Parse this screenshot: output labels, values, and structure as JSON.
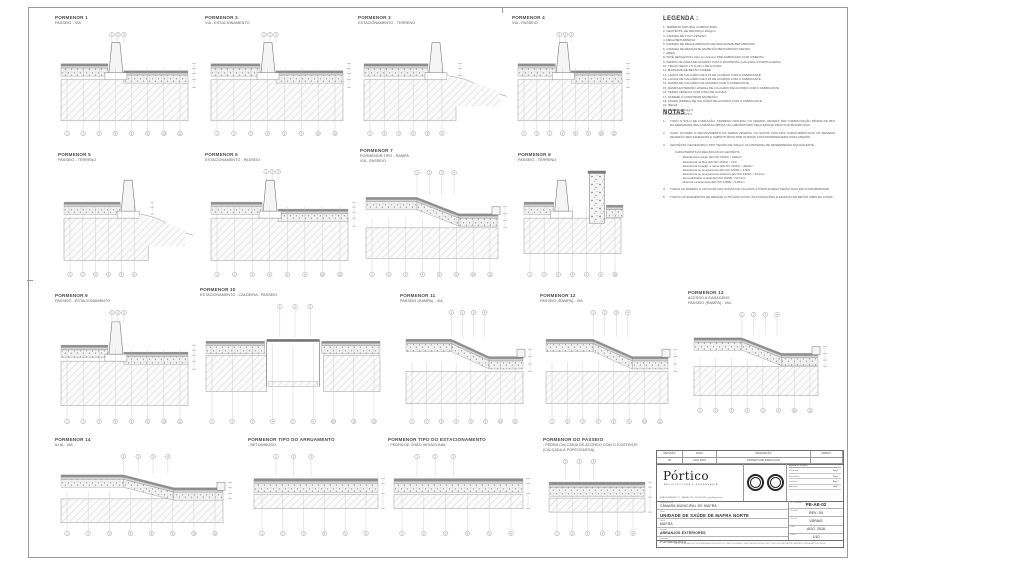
{
  "legend": {
    "title": "LEGENDA :",
    "items": [
      "TERRENO NATURAL COMPACTADO",
      "GEOTÊXTIL DE REFORÇO 200g/m²",
      "CAMADA DE TOUT-VENANT",
      "REGA BETUMINOSA",
      "CAMADA DE REGULARIZAÇÃO EM MACADAME BETUMINOSO",
      "CAMADA DE DESGASTE EM BETÃO BETUMINOSO DENSO",
      "AREIA",
      "PAVÊ HEXAGONAL (tipo em branco) PRÉ-FABRICADO COM CIMENTO",
      "PEDRA CALCÁRIA DE ACORDO COM O EXISTENTE (CALÇADA À PORTUGUESA)",
      "TRAÇO SECO 1:5 (0,04m) DE ALTURA",
      "MASSAME DE BETÃO C/REDE",
      "LANCIL DE CALCÁRIO DE 0,15 DE ACORDO COM O FABRICANTE",
      "LANCIL DE CALCÁRIO DE 0,25 DE ACORDO COM O FABRICANTE",
      "RAMPA DE CALCÁRIO DE ACORDO COM O FABRICANTE",
      "RAMPA EXTERIOR LATERAL DE CALCÁRIO DE ACORDO COM O FABRICANTE",
      "TERRA VEGETAL COM 0,50m DE ALTURA",
      "PAREDE A CONSTRUIR EM BETÃO",
      "LAGES (PEDRA) DE CALCÁRIO DE ACORDO COM O FABRICANTE",
      "RELVA",
      "TRAÇO SECO 1:3",
      "ARGAMASSA 1:3"
    ]
  },
  "notes": {
    "title": "NOTAS :",
    "items": [
      {
        "n": "1",
        "text": "TODO O SOLO DE FUNDAÇÃO, TERRENO NATURAL OU ATERRO, DEVERÁ TER COMPACTAÇÃO MÍNIMA DE 95% DA DENSIDADE SECA MÁXIMA OBTIDA NO LABORATÓRIO PELO ENSAIO PROCTOR MODIFICADO."
      },
      {
        "n": "2",
        "text": "CASO OCORRA O REVOLVIMENTO DA TERRA VEGETAL OU SOLOS COM MÁS CARACTERÍSTICAS OS MESMOS DEVERÃO SER SANEADOS E SUBSTITUÍDOS POR OUTROS COM PROPRIEDADES PARA ATERRO."
      },
      {
        "n": "3",
        "text": "GEOTÊXTIL DE REFORÇO TIPO TECIDO DE 200g/m² OU MATERIAL DE DESEMPENHO EQUIVALENTE",
        "sub_header": "CARACTERÍSTICAS MECÂNICAS DO GEOTÊXTIL:",
        "sub": [
          "Resistência à tração (EN ISO 10319) > 40kN/m",
          "Resistência na fibra (EN ISO 10319) > 12%",
          "Resistência à tração, à rotura (EN ISO 10319) > 40kN/m",
          "Resistência ao punçoamento (EN ISO 12236) > 1,5kN",
          "Resistência ao punçoamento dinâmico (EN ISO 13433) < 20,0mm",
          "Permeabilidade vertical (EN ISO 11058) > 50 l/m²s",
          "Abertura característica (EN ISO 12956) ≈ 0,08mm"
        ]
      },
      {
        "n": "4",
        "text": "TODAS AS RAMPAS A COLOCAR NAS ZONAS DE CALÇADA À PORTUGUESA TERÃO GUIA EM CONFORMIDADE"
      },
      {
        "n": "5",
        "text": "TODOS OS ELEMENTOS DE REMATE A UTILIZAR JUNTO ÀS FUNDAÇÕES E EDIFÍCIO EM BETÃO SIMPLES C/1500"
      }
    ]
  },
  "details": [
    {
      "title": "PORMENOR 1",
      "sub": "PASSEIO - VIA"
    },
    {
      "title": "PORMENOR 2",
      "sub": "VIA - ESTACIONAMENTO"
    },
    {
      "title": "PORMENOR 3",
      "sub": "ESTACIONAMENTO - TERRENO"
    },
    {
      "title": "PORMENOR 4",
      "sub": "VIA - PASSEIO"
    },
    {
      "title": "PORMENOR 5",
      "sub": "PASSEIO - TERRENO"
    },
    {
      "title": "PORMENOR 6",
      "sub": "ESTACIONAMENTO - PASSEIO"
    },
    {
      "title": "PORMENOR 7",
      "sub": "PORMENOR TIPO - RAMPA\nVIA - PASSEIO"
    },
    {
      "title": "PORMENOR 8",
      "sub": "PASSEIO - TERRENO"
    },
    {
      "title": "PORMENOR 9",
      "sub": "PASSEIO - ESTACIONAMENTO"
    },
    {
      "title": "PORMENOR 10",
      "sub": "ESTACIONAMENTO - CALDEIRA - PASSEIO"
    },
    {
      "title": "PORMENOR 11",
      "sub": "PASSEIO (RAMPA) - VIA"
    },
    {
      "title": "PORMENOR 12",
      "sub": "PASSEIO (RAMPA) - VIA"
    },
    {
      "title": "PORMENOR 13",
      "sub": "ACESSO A GARAGENS\nPASSEIO (RAMPA) - VIA"
    },
    {
      "title": "PORMENOR 14",
      "sub": "ILHA - VIA"
    },
    {
      "title": "PORMENOR TIPO DO ARRUAMENTO",
      "sub": "- BETUMINOSO"
    },
    {
      "title": "PORMENOR TIPO DO ESTACIONAMENTO",
      "sub": "- PEDRA DE CHÃO HEXAGONAL"
    },
    {
      "title": "PORMENOR DO PASSEIO",
      "sub": "- PEDRA CALCÁRIA DE ACORDO COM O EXISTENTE\n(CALÇADA À PORTUGUESA)"
    }
  ],
  "callout_numbers": [
    1,
    2,
    3,
    4,
    5,
    6,
    10,
    12,
    13,
    20,
    21,
    8,
    9,
    11
  ],
  "titleblock": {
    "revisions": {
      "headers": [
        "REVISÃO",
        "DATA",
        "DESCRIÇÃO",
        "APROV."
      ],
      "rows": [
        [
          "00",
          "AGO.2016",
          "PROJETO DE EXECUÇÃO",
          ""
        ]
      ]
    },
    "company": {
      "name": "Pórtico",
      "tagline": "ARQUITECTURA E ENGENHARIA",
      "address": "RUA DE MAFRA N.º 1 · MAFRA · TEL. 261 000 000 · geral@portico.pt"
    },
    "team": {
      "header": "Equipa de Projeto:",
      "rows": [
        {
          "label": "P. Equipa:",
          "value": "Eng.ª …"
        },
        {
          "label": "Desenhou:",
          "value": "Eng.ª …"
        },
        {
          "label": "Verificou:",
          "value": "Eng.ª …"
        },
        {
          "label": "Aprovou:",
          "value": "Arq.º …"
        }
      ]
    },
    "fields": [
      {
        "label": "Dono de Obra:",
        "value": "CÂMARA MUNICIPAL DE MAFRA",
        "cls": ""
      },
      {
        "label": "Obra:",
        "value": "UNIDADE DE SAÚDE DE MAFRA NORTE",
        "cls": "big"
      },
      {
        "label": "Local:",
        "value": "MAFRA",
        "cls": ""
      },
      {
        "label": "Projeto:",
        "value": "ARRANJOS EXTERIORES",
        "cls": "b"
      },
      {
        "label": "Desenho:",
        "value": "PORMENORES",
        "cls": ""
      }
    ],
    "meta": [
      {
        "label": "N.º Desenho:",
        "value": "PE-AE-02",
        "cls": "big"
      },
      {
        "label": "Revisão:",
        "value": "REV.: 00",
        "cls": ""
      },
      {
        "label": "Escala:",
        "value": "VÁRIAS",
        "cls": ""
      },
      {
        "label": "Data:",
        "value": "AGO. 2016",
        "cls": ""
      },
      {
        "label": "Folha:",
        "value": "1/10",
        "cls": ""
      }
    ],
    "disclaimer": "ESTE DESENHO É PROPRIEDADE DA PÓRTICO, NÃO PODENDO SER REPRODUZIDO NO TODO OU EM PARTE SEM AUTORIZAÇÃO ESCRITA."
  }
}
